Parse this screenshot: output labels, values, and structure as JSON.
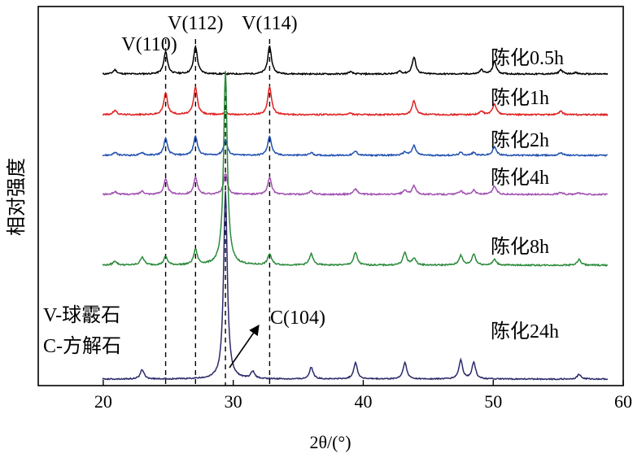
{
  "chart_data": {
    "type": "line",
    "title": "",
    "xlabel": "2θ/(°)",
    "ylabel": "相对强度",
    "xlim": [
      15,
      60
    ],
    "x_ticks": [
      20,
      30,
      40,
      50,
      60
    ],
    "x_tick_labels": [
      "20",
      "30",
      "40",
      "50",
      "60"
    ],
    "grid": false,
    "legend": "none",
    "vertical_reference_lines": [
      {
        "x": 24.8,
        "label": "V(110)"
      },
      {
        "x": 27.1,
        "label": "V(112)"
      },
      {
        "x": 29.4,
        "label": ""
      },
      {
        "x": 32.8,
        "label": "V(114)"
      }
    ],
    "legend_text": [
      "V-球霰石",
      "C-方解石"
    ],
    "annotation": {
      "label": "C(104)",
      "x": 29.4
    },
    "series": [
      {
        "name": "陈化0.5h",
        "color": "#000000",
        "baseline": 0.5,
        "peaks": [
          [
            20.9,
            0.15
          ],
          [
            24.8,
            0.8
          ],
          [
            27.1,
            1.0
          ],
          [
            32.8,
            1.0
          ],
          [
            39.0,
            0.08
          ],
          [
            42.8,
            0.1
          ],
          [
            43.9,
            0.6
          ],
          [
            49.1,
            0.15
          ],
          [
            50.1,
            0.45
          ],
          [
            55.2,
            0.15
          ],
          [
            56.3,
            0.05
          ]
        ]
      },
      {
        "name": "陈化1h",
        "color": "#e02020",
        "baseline": 1.5,
        "peaks": [
          [
            20.9,
            0.15
          ],
          [
            24.8,
            0.8
          ],
          [
            27.1,
            1.0
          ],
          [
            29.4,
            0.1
          ],
          [
            32.8,
            1.0
          ],
          [
            39.0,
            0.05
          ],
          [
            43.9,
            0.5
          ],
          [
            49.1,
            0.12
          ],
          [
            50.1,
            0.4
          ],
          [
            55.2,
            0.12
          ]
        ]
      },
      {
        "name": "陈化2h",
        "color": "#2050b0",
        "baseline": 2.5,
        "peaks": [
          [
            20.9,
            0.1
          ],
          [
            23.0,
            0.1
          ],
          [
            24.8,
            0.6
          ],
          [
            27.1,
            0.7
          ],
          [
            29.4,
            0.55
          ],
          [
            32.8,
            0.7
          ],
          [
            36.0,
            0.1
          ],
          [
            39.4,
            0.15
          ],
          [
            43.2,
            0.12
          ],
          [
            43.9,
            0.35
          ],
          [
            47.5,
            0.1
          ],
          [
            48.5,
            0.1
          ],
          [
            50.1,
            0.3
          ],
          [
            55.2,
            0.1
          ]
        ]
      },
      {
        "name": "陈化4h",
        "color": "#a050b0",
        "baseline": 3.5,
        "peaks": [
          [
            20.9,
            0.1
          ],
          [
            23.0,
            0.12
          ],
          [
            24.8,
            0.55
          ],
          [
            27.1,
            0.6
          ],
          [
            29.4,
            0.75
          ],
          [
            32.8,
            0.6
          ],
          [
            36.0,
            0.12
          ],
          [
            39.4,
            0.2
          ],
          [
            43.2,
            0.15
          ],
          [
            43.9,
            0.3
          ],
          [
            47.5,
            0.12
          ],
          [
            48.5,
            0.15
          ],
          [
            50.1,
            0.3
          ],
          [
            55.2,
            0.08
          ],
          [
            56.6,
            0.05
          ]
        ]
      },
      {
        "name": "陈化8h",
        "color": "#2a8a3a",
        "baseline": 4.5,
        "peaks": [
          [
            20.9,
            0.15
          ],
          [
            23.0,
            0.3
          ],
          [
            24.8,
            0.3
          ],
          [
            27.1,
            0.55
          ],
          [
            29.4,
            7.0
          ],
          [
            32.8,
            0.4
          ],
          [
            36.0,
            0.4
          ],
          [
            39.4,
            0.45
          ],
          [
            43.2,
            0.45
          ],
          [
            43.9,
            0.25
          ],
          [
            47.5,
            0.35
          ],
          [
            48.5,
            0.4
          ],
          [
            50.1,
            0.2
          ],
          [
            56.6,
            0.2
          ]
        ]
      },
      {
        "name": "陈化24h",
        "color": "#2b2a6a",
        "baseline": 6.0,
        "peaks": [
          [
            23.0,
            0.4
          ],
          [
            29.4,
            8.0
          ],
          [
            31.5,
            0.3
          ],
          [
            36.0,
            0.5
          ],
          [
            39.4,
            0.7
          ],
          [
            43.2,
            0.7
          ],
          [
            47.5,
            0.8
          ],
          [
            48.5,
            0.7
          ],
          [
            56.6,
            0.2
          ]
        ]
      }
    ]
  }
}
